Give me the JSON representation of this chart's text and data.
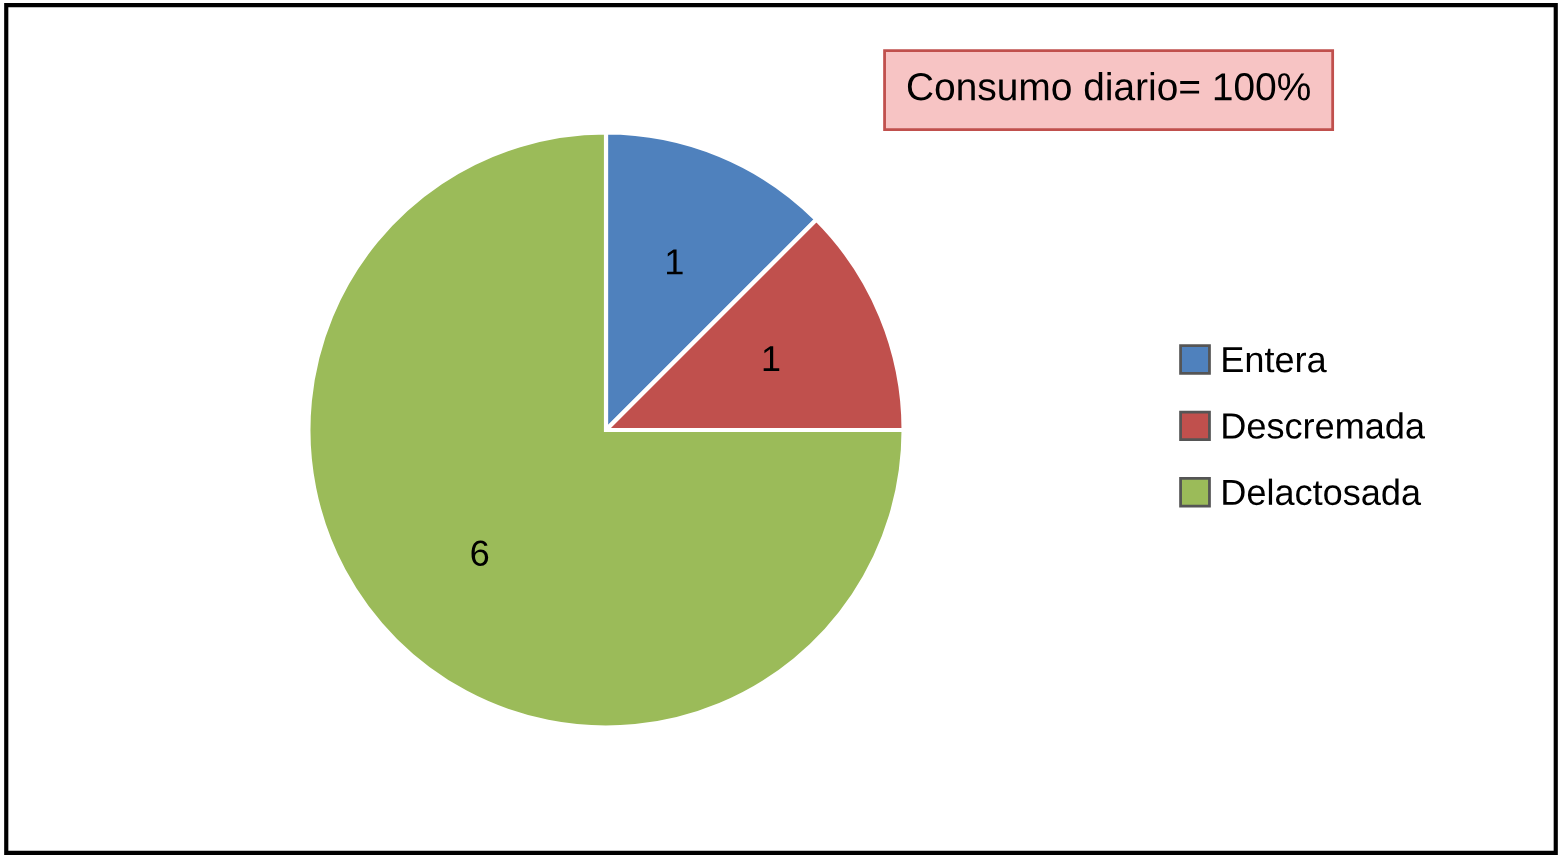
{
  "chart_data": {
    "type": "pie",
    "categories": [
      "Entera",
      "Descremada",
      "Delactosada"
    ],
    "values": [
      1,
      1,
      6
    ],
    "colors": [
      "#4f81bd",
      "#c0504d",
      "#9bbb59"
    ],
    "data_labels": true,
    "legend": "right",
    "annotations": [
      "Consumo diario= 100%"
    ]
  }
}
